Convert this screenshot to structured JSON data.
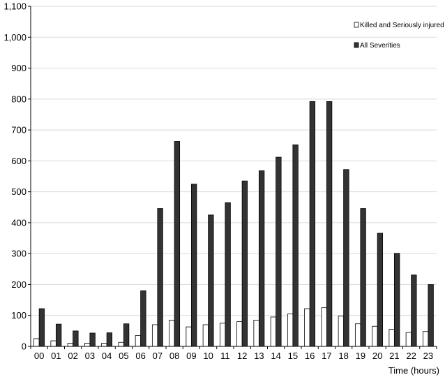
{
  "chart_data": {
    "type": "bar",
    "title": "",
    "xlabel": "Time (hours)",
    "ylabel": "",
    "ylim": [
      0,
      1100
    ],
    "yticks": [
      "0",
      "100",
      "200",
      "300",
      "400",
      "500",
      "600",
      "700",
      "800",
      "900",
      "1,000",
      "1,100"
    ],
    "grid": true,
    "legend_position": "top-right",
    "categories": [
      "00",
      "01",
      "02",
      "03",
      "04",
      "05",
      "06",
      "07",
      "08",
      "09",
      "10",
      "11",
      "12",
      "13",
      "14",
      "15",
      "16",
      "17",
      "18",
      "19",
      "20",
      "21",
      "22",
      "23"
    ],
    "series": [
      {
        "name": "Killed and Seriously injured",
        "color": "#ffffff",
        "values": [
          25,
          18,
          10,
          10,
          10,
          13,
          35,
          70,
          85,
          63,
          70,
          75,
          80,
          85,
          95,
          105,
          122,
          125,
          98,
          73,
          65,
          55,
          45,
          48
        ]
      },
      {
        "name": "All Severities",
        "color": "#333333",
        "values": [
          122,
          72,
          50,
          43,
          44,
          73,
          180,
          446,
          663,
          525,
          425,
          465,
          535,
          568,
          612,
          652,
          792,
          792,
          572,
          446,
          366,
          301,
          231,
          200
        ]
      }
    ]
  }
}
